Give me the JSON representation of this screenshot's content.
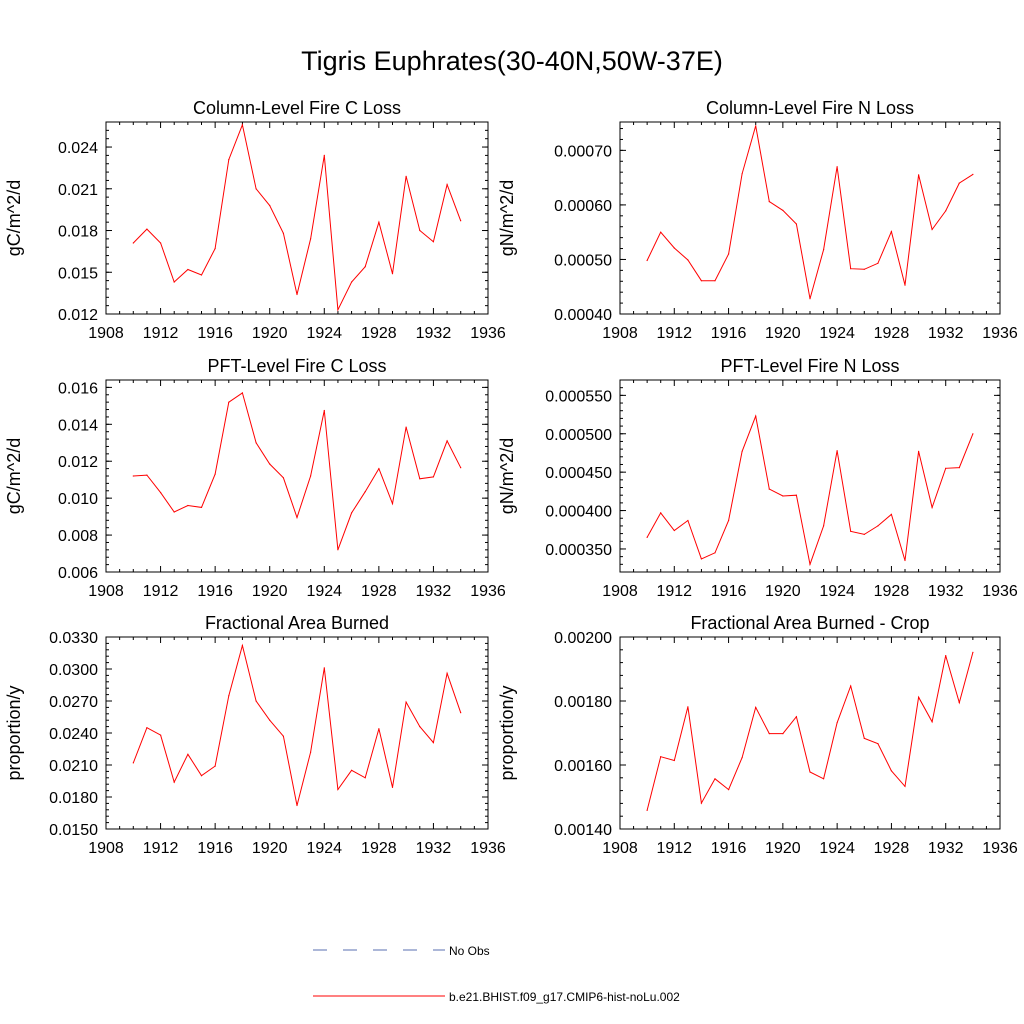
{
  "figure": {
    "title": "Tigris Euphrates(30-40N,50W-37E)"
  },
  "colors": {
    "model_line": "#ff0000",
    "obs_line": "#5a6fb0",
    "axis": "#000000"
  },
  "legend": {
    "obs_label": "No Obs",
    "model_label": "b.e21.BHIST.f09_g17.CMIP6-hist-noLu.002"
  },
  "chart_data": [
    {
      "type": "line",
      "title": "Column-Level Fire C Loss",
      "ylabel": "gC/m^2/d",
      "xlim": [
        1908,
        1936
      ],
      "ylim": [
        0.012,
        0.0258
      ],
      "xticks": [
        "1908",
        "1912",
        "1916",
        "1920",
        "1924",
        "1928",
        "1932",
        "1936"
      ],
      "yticks": [
        0.012,
        0.015,
        0.018,
        0.021,
        0.024
      ],
      "ytick_labels": [
        "0.012",
        "0.015",
        "0.018",
        "0.021",
        "0.024"
      ],
      "x": [
        1910,
        1911,
        1912,
        1913,
        1914,
        1915,
        1916,
        1917,
        1918,
        1919,
        1920,
        1921,
        1922,
        1923,
        1924,
        1925,
        1926,
        1927,
        1928,
        1929,
        1930,
        1931,
        1932,
        1933,
        1934
      ],
      "series": [
        {
          "values": [
            0.0171,
            0.0181,
            0.0171,
            0.0143,
            0.0152,
            0.0148,
            0.0167,
            0.0231,
            0.0256,
            0.021,
            0.0198,
            0.0178,
            0.0134,
            0.0174,
            0.0234,
            0.0123,
            0.0143,
            0.0154,
            0.0186,
            0.0149,
            0.0219,
            0.018,
            0.0172,
            0.0213,
            0.0187
          ]
        }
      ]
    },
    {
      "type": "line",
      "title": "Column-Level Fire N Loss",
      "ylabel": "gN/m^2/d",
      "xlim": [
        1908,
        1936
      ],
      "ylim": [
        0.0004,
        0.000752
      ],
      "xticks": [
        "1908",
        "1912",
        "1916",
        "1920",
        "1924",
        "1928",
        "1932",
        "1936"
      ],
      "yticks": [
        0.0004,
        0.0005,
        0.0006,
        0.0007
      ],
      "ytick_labels": [
        "0.00040",
        "0.00050",
        "0.00060",
        "0.00070"
      ],
      "x": [
        1910,
        1911,
        1912,
        1913,
        1914,
        1915,
        1916,
        1917,
        1918,
        1919,
        1920,
        1921,
        1922,
        1923,
        1924,
        1925,
        1926,
        1927,
        1928,
        1929,
        1930,
        1931,
        1932,
        1933,
        1934
      ],
      "series": [
        {
          "values": [
            0.000498,
            0.00055,
            0.000521,
            0.000499,
            0.000461,
            0.000461,
            0.00051,
            0.000657,
            0.000745,
            0.000606,
            0.00059,
            0.000565,
            0.000428,
            0.000518,
            0.00067,
            0.000483,
            0.000482,
            0.000493,
            0.000551,
            0.000453,
            0.000655,
            0.000555,
            0.000589,
            0.00064,
            0.000656
          ]
        }
      ]
    },
    {
      "type": "line",
      "title": "PFT-Level Fire C Loss",
      "ylabel": "gC/m^2/d",
      "xlim": [
        1908,
        1936
      ],
      "ylim": [
        0.006,
        0.0164
      ],
      "xticks": [
        "1908",
        "1912",
        "1916",
        "1920",
        "1924",
        "1928",
        "1932",
        "1936"
      ],
      "yticks": [
        0.006,
        0.008,
        0.01,
        0.012,
        0.014,
        0.016
      ],
      "ytick_labels": [
        "0.006",
        "0.008",
        "0.010",
        "0.012",
        "0.014",
        "0.016"
      ],
      "x": [
        1910,
        1911,
        1912,
        1913,
        1914,
        1915,
        1916,
        1917,
        1918,
        1919,
        1920,
        1921,
        1922,
        1923,
        1924,
        1925,
        1926,
        1927,
        1928,
        1929,
        1930,
        1931,
        1932,
        1933,
        1934
      ],
      "series": [
        {
          "values": [
            0.0112,
            0.01125,
            0.0103,
            0.00925,
            0.0096,
            0.0095,
            0.0113,
            0.0152,
            0.0157,
            0.013,
            0.01185,
            0.0111,
            0.00895,
            0.0112,
            0.01475,
            0.0072,
            0.0092,
            0.01035,
            0.0116,
            0.0097,
            0.01385,
            0.01105,
            0.01115,
            0.0131,
            0.01165
          ]
        }
      ]
    },
    {
      "type": "line",
      "title": "PFT-Level Fire N Loss",
      "ylabel": "gN/m^2/d",
      "xlim": [
        1908,
        1936
      ],
      "ylim": [
        0.00032,
        0.00057
      ],
      "xticks": [
        "1908",
        "1912",
        "1916",
        "1920",
        "1924",
        "1928",
        "1932",
        "1936"
      ],
      "yticks": [
        0.00035,
        0.0004,
        0.00045,
        0.0005,
        0.00055
      ],
      "ytick_labels": [
        "0.000350",
        "0.000400",
        "0.000450",
        "0.000500",
        "0.000550"
      ],
      "x": [
        1910,
        1911,
        1912,
        1913,
        1914,
        1915,
        1916,
        1917,
        1918,
        1919,
        1920,
        1921,
        1922,
        1923,
        1924,
        1925,
        1926,
        1927,
        1928,
        1929,
        1930,
        1931,
        1932,
        1933,
        1934
      ],
      "series": [
        {
          "values": [
            0.000365,
            0.000397,
            0.000374,
            0.000387,
            0.000337,
            0.000345,
            0.000387,
            0.000477,
            0.000523,
            0.000428,
            0.000419,
            0.00042,
            0.00033,
            0.00038,
            0.000478,
            0.000373,
            0.000369,
            0.00038,
            0.000395,
            0.000335,
            0.000477,
            0.000404,
            0.000455,
            0.000456,
            0.0005
          ]
        }
      ]
    },
    {
      "type": "line",
      "title": "Fractional Area Burned",
      "ylabel": "proportion/y",
      "xlim": [
        1908,
        1936
      ],
      "ylim": [
        0.015,
        0.033
      ],
      "xticks": [
        "1908",
        "1912",
        "1916",
        "1920",
        "1924",
        "1928",
        "1932",
        "1936"
      ],
      "yticks": [
        0.015,
        0.018,
        0.021,
        0.024,
        0.027,
        0.03,
        0.033
      ],
      "ytick_labels": [
        "0.0150",
        "0.0180",
        "0.0210",
        "0.0240",
        "0.0270",
        "0.0300",
        "0.0330"
      ],
      "x": [
        1910,
        1911,
        1912,
        1913,
        1914,
        1915,
        1916,
        1917,
        1918,
        1919,
        1920,
        1921,
        1922,
        1923,
        1924,
        1925,
        1926,
        1927,
        1928,
        1929,
        1930,
        1931,
        1932,
        1933,
        1934
      ],
      "series": [
        {
          "values": [
            0.0212,
            0.0245,
            0.0238,
            0.0194,
            0.022,
            0.02,
            0.0209,
            0.0275,
            0.0322,
            0.027,
            0.0252,
            0.0237,
            0.0172,
            0.0222,
            0.0301,
            0.0187,
            0.0205,
            0.0198,
            0.0244,
            0.0189,
            0.0269,
            0.0246,
            0.0231,
            0.0296,
            0.0259
          ]
        }
      ]
    },
    {
      "type": "line",
      "title": "Fractional Area Burned - Crop",
      "ylabel": "proportion/y",
      "xlim": [
        1908,
        1936
      ],
      "ylim": [
        0.0014,
        0.002
      ],
      "xticks": [
        "1908",
        "1912",
        "1916",
        "1920",
        "1924",
        "1928",
        "1932",
        "1936"
      ],
      "yticks": [
        0.0014,
        0.0016,
        0.0018,
        0.002
      ],
      "ytick_labels": [
        "0.00140",
        "0.00160",
        "0.00180",
        "0.00200"
      ],
      "x": [
        1910,
        1911,
        1912,
        1913,
        1914,
        1915,
        1916,
        1917,
        1918,
        1919,
        1920,
        1921,
        1922,
        1923,
        1924,
        1925,
        1926,
        1927,
        1928,
        1929,
        1930,
        1931,
        1932,
        1933,
        1934
      ],
      "series": [
        {
          "values": [
            0.001458,
            0.001626,
            0.001614,
            0.001782,
            0.001481,
            0.001557,
            0.001523,
            0.001623,
            0.00178,
            0.001698,
            0.001698,
            0.001751,
            0.001578,
            0.001557,
            0.001732,
            0.001847,
            0.001683,
            0.001667,
            0.001582,
            0.001533,
            0.001812,
            0.001735,
            0.001942,
            0.001795,
            0.001952
          ]
        }
      ]
    }
  ]
}
